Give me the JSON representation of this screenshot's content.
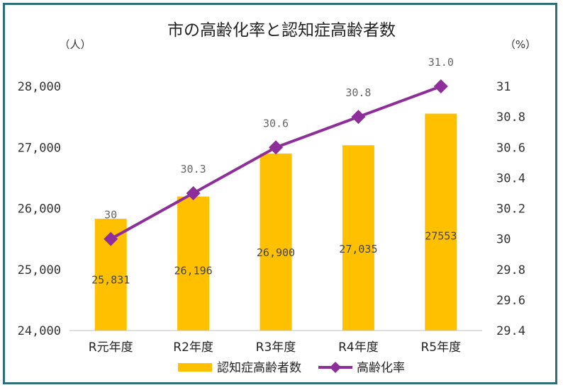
{
  "chart_data": {
    "type": "bar",
    "title": "市の高齢化率と認知症高齢者数",
    "left_unit": "（人）",
    "right_unit": "（%）",
    "categories": [
      "R元年度",
      "R2年度",
      "R3年度",
      "R4年度",
      "R5年度"
    ],
    "series": [
      {
        "name": "認知症高齢者数",
        "type": "bar",
        "axis": "left",
        "color": "#ffc000",
        "values": [
          25831,
          26196,
          26900,
          27035,
          27553
        ],
        "labels": [
          "25,831",
          "26,196",
          "26,900",
          "27,035",
          "27553"
        ]
      },
      {
        "name": "高齢化率",
        "type": "line",
        "axis": "right",
        "color": "#8e2e9b",
        "marker": "diamond",
        "values": [
          30,
          30.3,
          30.6,
          30.8,
          31.0
        ],
        "labels": [
          "30",
          "30.3",
          "30.6",
          "30.8",
          "31.0"
        ]
      }
    ],
    "y_left": {
      "min": 24000,
      "max": 28000,
      "ticks": [
        24000,
        25000,
        26000,
        27000,
        28000
      ],
      "tick_labels": [
        "24,000",
        "25,000",
        "26,000",
        "27,000",
        "28,000"
      ]
    },
    "y_right": {
      "min": 29.4,
      "max": 31.0,
      "ticks": [
        29.4,
        29.6,
        29.8,
        30,
        30.2,
        30.4,
        30.6,
        30.8,
        31
      ],
      "tick_labels": [
        "29.4",
        "29.6",
        "29.8",
        "30",
        "30.2",
        "30.4",
        "30.6",
        "30.8",
        "31"
      ]
    },
    "grid": false,
    "legend": "bottom",
    "colors": {
      "frame": "#2e6e78",
      "axis": "#bfbfbf"
    }
  }
}
